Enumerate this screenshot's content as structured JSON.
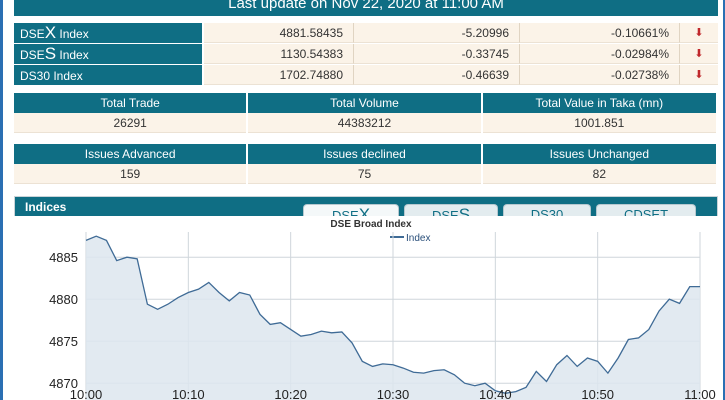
{
  "header": {
    "last_update": "Last update on Nov 22, 2020 at 11:00 AM"
  },
  "indices": [
    {
      "prefix": "DSE",
      "big": "X",
      "suffix": " Index",
      "value": "4881.58435",
      "change": "-5.20996",
      "percent": "-0.10661%",
      "trend_icon": "double-chevron-down-icon"
    },
    {
      "prefix": "DSE",
      "big": "S",
      "suffix": " Index",
      "value": "1130.54383",
      "change": "-0.33745",
      "percent": "-0.02984%",
      "trend_icon": "double-chevron-down-icon"
    },
    {
      "prefix": "DS30 Index",
      "big": "",
      "suffix": "",
      "value": "1702.74880",
      "change": "-0.46639",
      "percent": "-0.02738%",
      "trend_icon": "double-chevron-down-icon"
    }
  ],
  "trade_summary": {
    "headers": [
      "Total Trade",
      "Total Volume",
      "Total Value in Taka (mn)"
    ],
    "values": [
      "26291",
      "44383212",
      "1001.851"
    ]
  },
  "issues_summary": {
    "headers": [
      "Issues Advanced",
      "Issues declined",
      "Issues Unchanged"
    ],
    "values": [
      "159",
      "75",
      "82"
    ]
  },
  "chart_panel": {
    "title": "Indices",
    "tabs": [
      {
        "prefix": "DSE",
        "big": "X"
      },
      {
        "prefix": "DSE",
        "big": "S"
      },
      {
        "prefix": "DS30",
        "big": ""
      },
      {
        "prefix": "CDSET",
        "big": ""
      }
    ]
  },
  "colors": {
    "header_bg": "#0f6e84",
    "cell_bg": "#fbf3e8",
    "down_arrow": "#c0282c",
    "series_line": "#3f6b96",
    "series_fill": "#dde6ef"
  },
  "chart_data": {
    "type": "area",
    "title": "DSE Broad Index",
    "legend": "Index",
    "legend_position": "top-center",
    "grid": true,
    "x_ticks": [
      "10:00",
      "10:10",
      "10:20",
      "10:30",
      "10:40",
      "10:50",
      "11:00"
    ],
    "y_ticks": [
      4870,
      4875,
      4880,
      4885
    ],
    "xlim": [
      0,
      60
    ],
    "ylim": [
      4868,
      4888
    ],
    "series": [
      {
        "name": "Index",
        "x": [
          0,
          1,
          2,
          3,
          4,
          5,
          6,
          7,
          8,
          9,
          10,
          11,
          12,
          13,
          14,
          15,
          16,
          17,
          18,
          19,
          20,
          21,
          22,
          23,
          24,
          25,
          26,
          27,
          28,
          29,
          30,
          31,
          32,
          33,
          34,
          35,
          36,
          37,
          38,
          39,
          40,
          41,
          42,
          43,
          44,
          45,
          46,
          47,
          48,
          49,
          50,
          51,
          52,
          53,
          54,
          55,
          56,
          57,
          58,
          59,
          60
        ],
        "values": [
          4887.0,
          4887.5,
          4887.0,
          4884.6,
          4885.0,
          4884.8,
          4879.4,
          4878.8,
          4879.4,
          4880.2,
          4880.8,
          4881.2,
          4882.0,
          4880.8,
          4879.8,
          4880.8,
          4880.5,
          4878.2,
          4877.0,
          4877.2,
          4876.4,
          4875.6,
          4875.8,
          4876.2,
          4876.0,
          4876.1,
          4874.8,
          4872.6,
          4872.0,
          4872.3,
          4872.2,
          4871.8,
          4871.3,
          4871.2,
          4871.5,
          4871.6,
          4871.0,
          4870.0,
          4869.7,
          4870.0,
          4869.1,
          4868.8,
          4869.0,
          4869.5,
          4871.4,
          4870.2,
          4872.2,
          4873.3,
          4872.0,
          4873.0,
          4872.6,
          4871.2,
          4873.0,
          4875.2,
          4875.4,
          4876.4,
          4878.6,
          4880.0,
          4879.5,
          4881.5,
          4881.5
        ]
      }
    ]
  }
}
